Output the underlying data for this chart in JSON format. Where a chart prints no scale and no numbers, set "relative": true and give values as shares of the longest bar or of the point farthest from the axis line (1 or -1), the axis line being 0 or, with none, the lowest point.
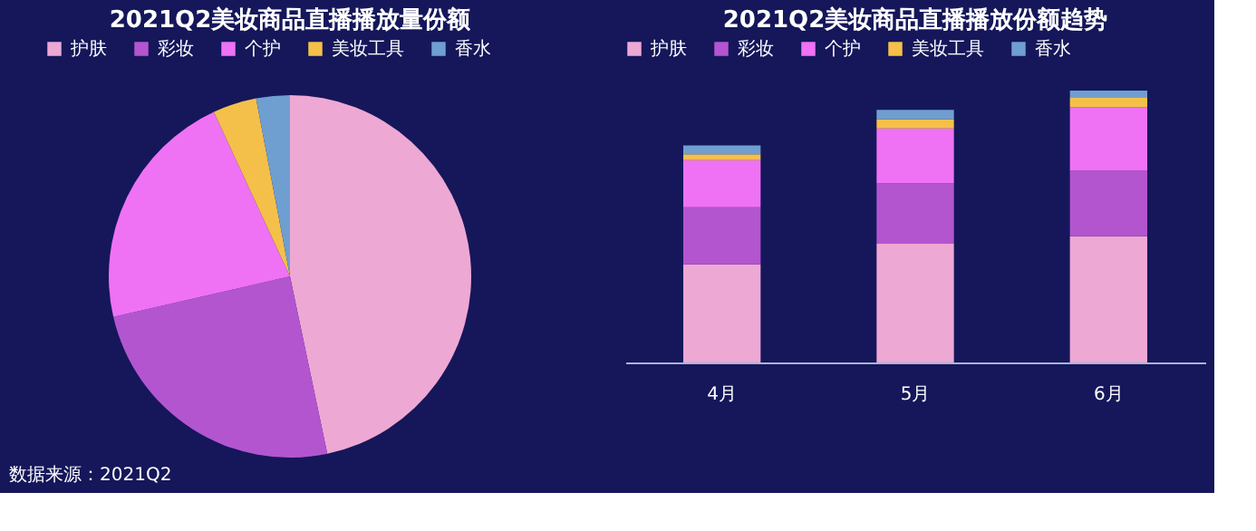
{
  "chart_data": [
    {
      "type": "pie",
      "title": "2021Q2美妆商品直播播放量份额",
      "categories": [
        "护肤",
        "彩妆",
        "个护",
        "美妆工具",
        "香水"
      ],
      "values": [
        46.7,
        24.7,
        21.7,
        3.9,
        3.0
      ],
      "colors": [
        "#eea8d4",
        "#b455d0",
        "#ef72f4",
        "#f5c04a",
        "#6f9fd0"
      ],
      "legend": "top",
      "annotations": [
        "数据来源：2021Q2"
      ]
    },
    {
      "type": "bar",
      "title": "2021Q2美妆商品直播播放份额趋势",
      "categories": [
        "4月",
        "5月",
        "6月"
      ],
      "stacked": true,
      "relative": true,
      "legend": "top",
      "grid": false,
      "series": [
        {
          "name": "护肤",
          "color": "#eea8d4",
          "values": [
            0.361,
            0.437,
            0.464
          ]
        },
        {
          "name": "彩妆",
          "color": "#b455d0",
          "values": [
            0.21,
            0.222,
            0.241
          ]
        },
        {
          "name": "个护",
          "color": "#ef72f4",
          "values": [
            0.173,
            0.202,
            0.234
          ]
        },
        {
          "name": "美妆工具",
          "color": "#f5c04a",
          "values": [
            0.022,
            0.034,
            0.037
          ]
        },
        {
          "name": "香水",
          "color": "#6f9fd0",
          "values": [
            0.032,
            0.034,
            0.024
          ]
        }
      ]
    }
  ]
}
